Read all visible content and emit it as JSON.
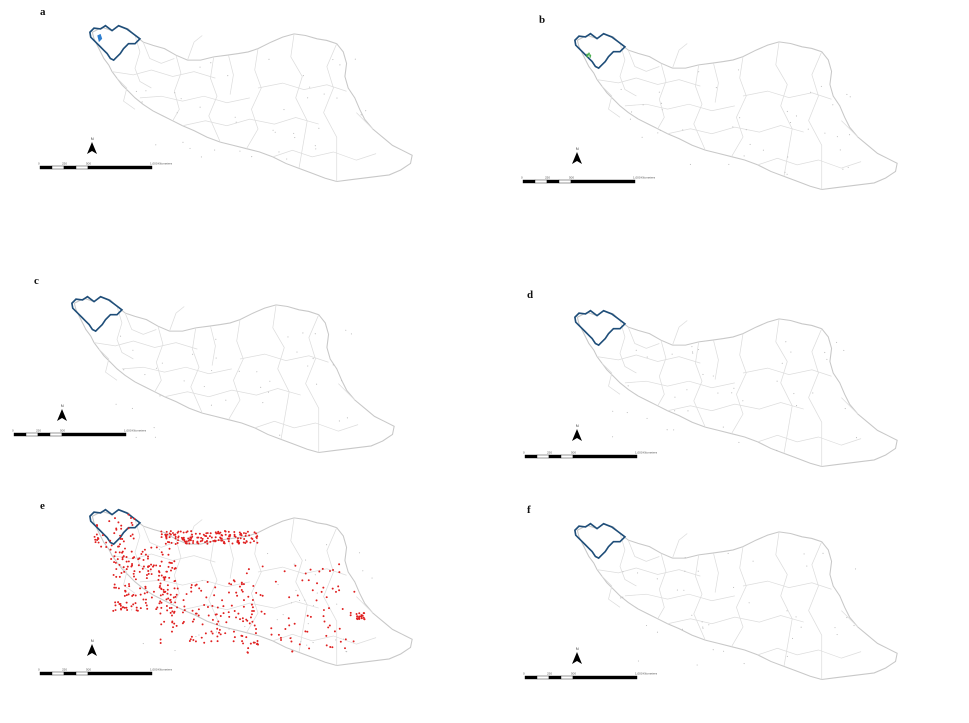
{
  "colors": {
    "country_outline": "#c8c8c8",
    "province_lines": "#dddddd",
    "highlight_region": "#1f4e79",
    "water_body": "#2f7fd0",
    "green_points": "#4caf50",
    "red_points": "#e02020",
    "north_arrow": "#000000",
    "scale_bar": "#000000"
  },
  "panels": [
    {
      "label": "a",
      "north_letter": "N",
      "marker_color": "water_body",
      "point_density": "none"
    },
    {
      "label": "b",
      "north_letter": "N",
      "marker_color": "green_points",
      "point_density": "sparse"
    },
    {
      "label": "c",
      "north_letter": "N",
      "marker_color": "none",
      "point_density": "none"
    },
    {
      "label": "d",
      "north_letter": "N",
      "marker_color": "none",
      "point_density": "none"
    },
    {
      "label": "e",
      "north_letter": "N",
      "marker_color": "red_points",
      "point_density": "dense"
    },
    {
      "label": "f",
      "north_letter": "N",
      "marker_color": "none",
      "point_density": "none"
    }
  ],
  "scale_bar_labels": [
    "0",
    "250",
    "500",
    "1,000",
    "Kilometers"
  ]
}
